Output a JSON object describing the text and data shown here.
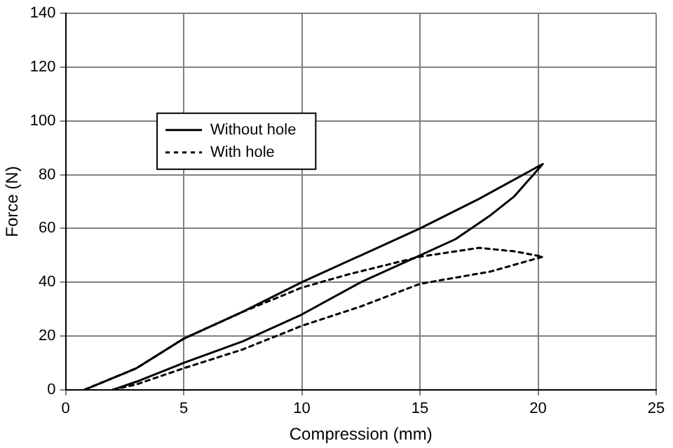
{
  "chart_data": {
    "type": "line",
    "xlabel": "Compression (mm)",
    "ylabel": "Force (N)",
    "xlim": [
      0,
      25
    ],
    "xticks": [
      0,
      5,
      10,
      15,
      20,
      25
    ],
    "ylim": [
      0,
      140
    ],
    "yticks": [
      0,
      20,
      40,
      60,
      80,
      100,
      120,
      140
    ],
    "grid": true,
    "legend": "top left",
    "marker": "none",
    "series": [
      {
        "name": "Without hole",
        "color": "#000000",
        "line_style": "solid",
        "x": [
          0.8,
          3,
          5,
          7.5,
          10,
          12.5,
          15,
          17.5,
          20.2,
          19,
          18,
          16.5,
          15,
          12.5,
          10,
          7.5,
          5,
          3,
          2
        ],
        "values": [
          0,
          8,
          19,
          29,
          40,
          50,
          60,
          71,
          84,
          72,
          65,
          56,
          50,
          40,
          28,
          18,
          10,
          3,
          0
        ]
      },
      {
        "name": "With hole",
        "color": "#000000",
        "line_style": "dotted",
        "x": [
          0.8,
          3,
          5,
          7.5,
          10,
          12,
          15,
          17.5,
          19,
          20.2,
          18,
          15,
          12.5,
          10,
          7.5,
          5,
          3,
          2
        ],
        "values": [
          0,
          8,
          19,
          29,
          38,
          43,
          49.5,
          52.8,
          51.5,
          49.5,
          44,
          39.4,
          31,
          23.8,
          15,
          8,
          2,
          0
        ]
      }
    ]
  }
}
